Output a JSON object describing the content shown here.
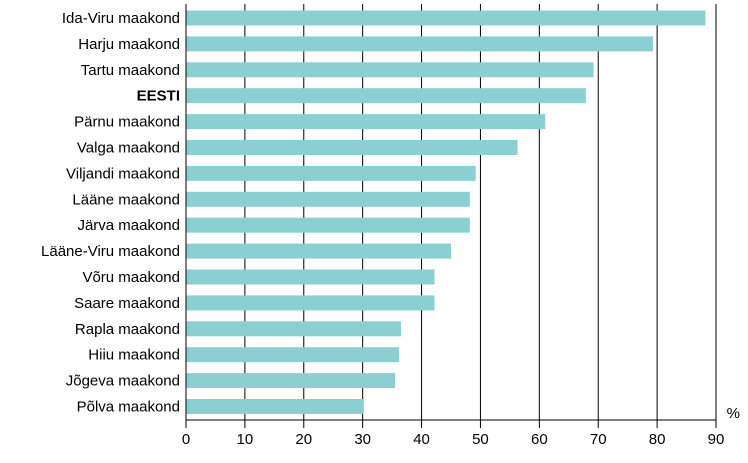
{
  "chart_data": {
    "type": "bar",
    "orientation": "horizontal",
    "categories": [
      "Ida-Viru maakond",
      "Harju maakond",
      "Tartu maakond",
      "EESTI",
      "Pärnu maakond",
      "Valga maakond",
      "Viljandi maakond",
      "Lääne maakond",
      "Järva maakond",
      "Lääne-Viru maakond",
      "Võru maakond",
      "Saare maakond",
      "Rapla maakond",
      "Hiiu maakond",
      "Jõgeva maakond",
      "Põlva maakond"
    ],
    "highlight_category": "EESTI",
    "values": [
      88.2,
      79.3,
      69.2,
      67.9,
      61.0,
      56.3,
      49.2,
      48.2,
      48.2,
      45.0,
      42.2,
      42.2,
      36.5,
      36.2,
      35.5,
      30.2
    ],
    "xlabel": "%",
    "ylabel": "",
    "xlim": [
      0,
      90
    ],
    "xticks": [
      "0",
      "10",
      "20",
      "30",
      "40",
      "50",
      "60",
      "70",
      "80",
      "90"
    ],
    "grid": "vertical",
    "colors": {
      "bar": "#8ccfd2",
      "grid": "#000000",
      "axis": "#000000"
    }
  }
}
